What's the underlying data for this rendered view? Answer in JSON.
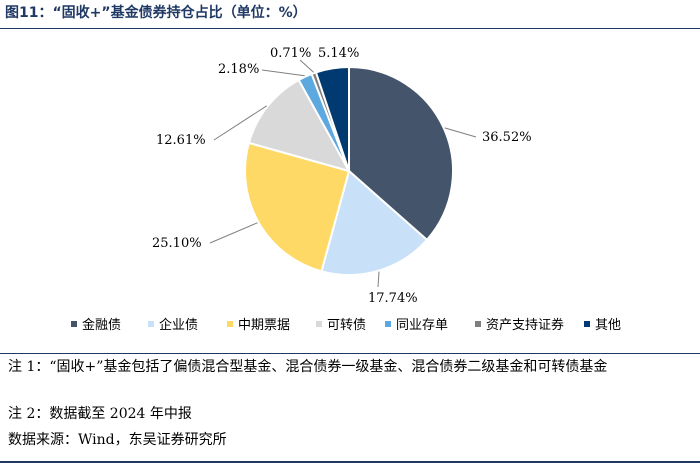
{
  "figure": {
    "title": "图11：“固收+”基金债券持仓占比（单位：%）"
  },
  "chart_data": {
    "type": "pie",
    "title": "",
    "categories": [
      "金融债",
      "企业债",
      "中期票据",
      "可转债",
      "同业存单",
      "资产支持证券",
      "其他"
    ],
    "values": [
      36.52,
      17.74,
      25.1,
      12.61,
      2.18,
      0.71,
      5.14
    ],
    "labels": [
      "36.52%",
      "17.74%",
      "25.10%",
      "12.61%",
      "2.18%",
      "0.71%",
      "5.14%"
    ],
    "colors": [
      "#44546a",
      "#c9e1f8",
      "#ffd966",
      "#d9d9d9",
      "#5da8de",
      "#7f7f7f",
      "#003a70"
    ],
    "legend_position": "bottom",
    "start_angle_deg": 0,
    "direction": "clockwise"
  },
  "notes": {
    "note1": "注 1：“固收+”基金包括了偏债混合型基金、混合债券一级基金、混合债券二级基金和可转债基金",
    "note2": "注 2：数据截至 2024 年中报",
    "source": "数据来源：Wind，东吴证券研究所"
  }
}
